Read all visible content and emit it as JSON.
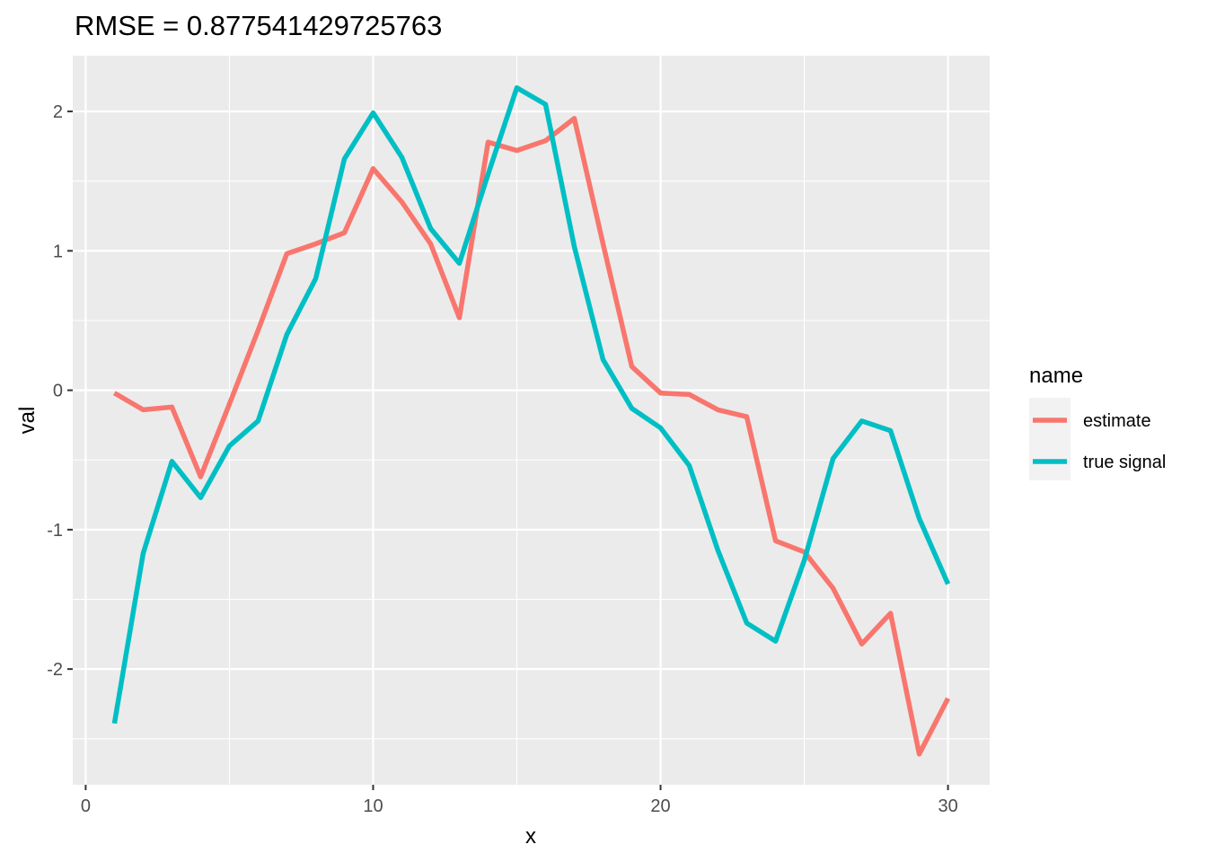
{
  "chart_data": {
    "type": "line",
    "title": "RMSE = 0.877541429725763",
    "xlabel": "x",
    "ylabel": "val",
    "xlim": [
      -0.45,
      31.45
    ],
    "ylim": [
      -2.83,
      2.4
    ],
    "x_ticks": [
      0,
      10,
      20,
      30
    ],
    "x_tick_labels": [
      "0",
      "10",
      "20",
      "30"
    ],
    "y_ticks": [
      -2,
      -1,
      0,
      1,
      2
    ],
    "y_tick_labels": [
      "-2",
      "-1",
      "0",
      "1",
      "2"
    ],
    "grid": true,
    "legend": {
      "title": "name",
      "position": "right"
    },
    "x": [
      1,
      2,
      3,
      4,
      5,
      6,
      7,
      8,
      9,
      10,
      11,
      12,
      13,
      14,
      15,
      16,
      17,
      18,
      19,
      20,
      21,
      22,
      23,
      24,
      25,
      26,
      27,
      28,
      29,
      30
    ],
    "series": [
      {
        "name": "estimate",
        "color": "#F8766D",
        "values": [
          -0.02,
          -0.14,
          -0.12,
          -0.62,
          -0.1,
          0.43,
          0.98,
          1.05,
          1.13,
          1.59,
          1.35,
          1.05,
          0.52,
          1.78,
          1.72,
          1.79,
          1.95,
          1.05,
          0.17,
          -0.02,
          -0.03,
          -0.14,
          -0.19,
          -1.08,
          -1.16,
          -1.42,
          -1.82,
          -1.6,
          -2.61,
          -2.21
        ]
      },
      {
        "name": "true signal",
        "color": "#00BFC4",
        "values": [
          -2.39,
          -1.17,
          -0.51,
          -0.77,
          -0.4,
          -0.22,
          0.4,
          0.8,
          1.66,
          1.99,
          1.67,
          1.16,
          0.91,
          1.55,
          2.17,
          2.05,
          1.03,
          0.22,
          -0.13,
          -0.27,
          -0.54,
          -1.15,
          -1.67,
          -1.8,
          -1.22,
          -0.49,
          -0.22,
          -0.29,
          -0.92,
          -1.39
        ]
      }
    ]
  }
}
